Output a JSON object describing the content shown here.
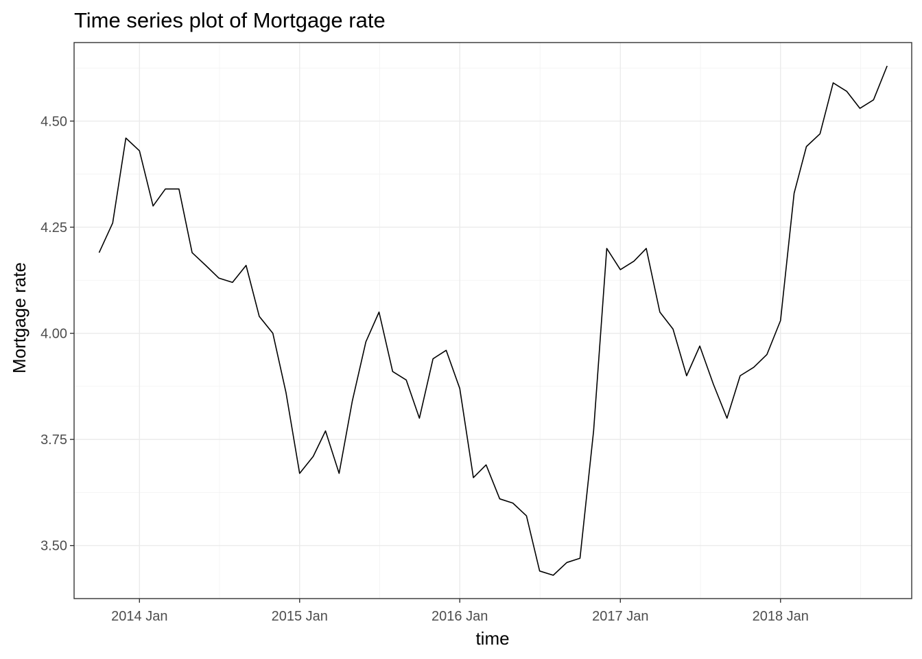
{
  "chart_data": {
    "type": "line",
    "title": "Time series plot of Mortgage rate",
    "xlabel": "time",
    "ylabel": "Mortgage rate",
    "xlim": [
      "2013-08-05",
      "2018-10-27"
    ],
    "ylim": [
      3.375,
      4.685
    ],
    "x_ticks": [
      {
        "date": "2014-01-01",
        "label": "2014 Jan"
      },
      {
        "date": "2015-01-01",
        "label": "2015 Jan"
      },
      {
        "date": "2016-01-01",
        "label": "2016 Jan"
      },
      {
        "date": "2017-01-01",
        "label": "2017 Jan"
      },
      {
        "date": "2018-01-01",
        "label": "2018 Jan"
      }
    ],
    "y_ticks": [
      {
        "value": 3.5,
        "label": "3.50"
      },
      {
        "value": 3.75,
        "label": "3.75"
      },
      {
        "value": 4.0,
        "label": "4.00"
      },
      {
        "value": 4.25,
        "label": "4.25"
      },
      {
        "value": 4.5,
        "label": "4.50"
      }
    ],
    "grid": true,
    "legend": "none",
    "series": [
      {
        "color": "#000000",
        "x": [
          "2013-10-01",
          "2013-11-01",
          "2013-12-01",
          "2014-01-01",
          "2014-02-01",
          "2014-03-01",
          "2014-04-01",
          "2014-05-01",
          "2014-06-01",
          "2014-07-01",
          "2014-08-01",
          "2014-09-01",
          "2014-10-01",
          "2014-11-01",
          "2014-12-01",
          "2015-01-01",
          "2015-02-01",
          "2015-03-01",
          "2015-04-01",
          "2015-05-01",
          "2015-06-01",
          "2015-07-01",
          "2015-08-01",
          "2015-09-01",
          "2015-10-01",
          "2015-11-01",
          "2015-12-01",
          "2016-01-01",
          "2016-02-01",
          "2016-03-01",
          "2016-04-01",
          "2016-05-01",
          "2016-06-01",
          "2016-07-01",
          "2016-08-01",
          "2016-09-01",
          "2016-10-01",
          "2016-11-01",
          "2016-12-01",
          "2017-01-01",
          "2017-02-01",
          "2017-03-01",
          "2017-04-01",
          "2017-05-01",
          "2017-06-01",
          "2017-07-01",
          "2017-08-01",
          "2017-09-01",
          "2017-10-01",
          "2017-11-01",
          "2017-12-01",
          "2018-01-01",
          "2018-02-01",
          "2018-03-01",
          "2018-04-01",
          "2018-05-01",
          "2018-06-01",
          "2018-07-01",
          "2018-08-01",
          "2018-09-01"
        ],
        "values": [
          4.19,
          4.26,
          4.46,
          4.43,
          4.3,
          4.34,
          4.34,
          4.19,
          4.16,
          4.13,
          4.12,
          4.16,
          4.04,
          4.0,
          3.86,
          3.67,
          3.71,
          3.77,
          3.67,
          3.84,
          3.98,
          4.05,
          3.91,
          3.89,
          3.8,
          3.94,
          3.96,
          3.87,
          3.66,
          3.69,
          3.61,
          3.6,
          3.57,
          3.44,
          3.43,
          3.46,
          3.47,
          3.77,
          4.2,
          4.15,
          4.17,
          4.2,
          4.05,
          4.01,
          3.9,
          3.97,
          3.88,
          3.8,
          3.9,
          3.92,
          3.95,
          4.03,
          4.33,
          4.44,
          4.47,
          4.59,
          4.57,
          4.53,
          4.55,
          4.63
        ]
      }
    ]
  }
}
